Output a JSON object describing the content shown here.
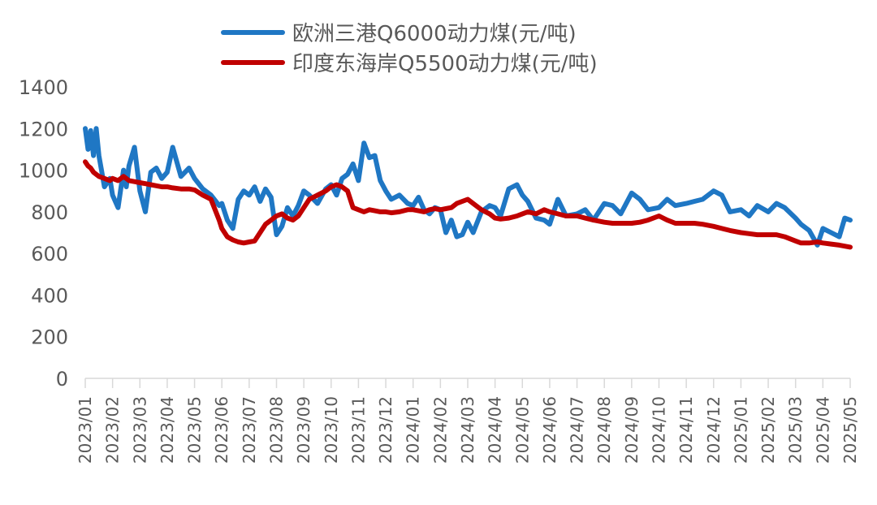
{
  "chart_data": {
    "type": "line",
    "title": "",
    "xlabel": "",
    "ylabel": "",
    "ylim": [
      0,
      1400
    ],
    "yticks": [
      0,
      200,
      400,
      600,
      800,
      1000,
      1200,
      1400
    ],
    "grid": false,
    "legend_position": "top",
    "categories": [
      "2023/01",
      "2023/02",
      "2023/03",
      "2023/04",
      "2023/05",
      "2023/06",
      "2023/07",
      "2023/08",
      "2023/09",
      "2023/10",
      "2023/11",
      "2023/12",
      "2024/01",
      "2024/02",
      "2024/03",
      "2024/04",
      "2024/05",
      "2024/06",
      "2024/07",
      "2024/08",
      "2024/09",
      "2024/10",
      "2024/11",
      "2024/12",
      "2025/01",
      "2025/02",
      "2025/03",
      "2025/04",
      "2025/05"
    ],
    "x": [
      0,
      0.1,
      0.2,
      0.3,
      0.4,
      0.5,
      0.7,
      0.9,
      1.0,
      1.2,
      1.4,
      1.5,
      1.6,
      1.8,
      2.0,
      2.2,
      2.4,
      2.6,
      2.8,
      3.0,
      3.2,
      3.5,
      3.8,
      4.0,
      4.3,
      4.6,
      4.9,
      5.0,
      5.2,
      5.4,
      5.6,
      5.8,
      6.0,
      6.2,
      6.4,
      6.6,
      6.8,
      7.0,
      7.2,
      7.4,
      7.6,
      7.8,
      8.0,
      8.2,
      8.5,
      8.8,
      9.0,
      9.2,
      9.4,
      9.6,
      9.8,
      10.0,
      10.2,
      10.4,
      10.6,
      10.8,
      11.0,
      11.2,
      11.5,
      11.8,
      12.0,
      12.2,
      12.4,
      12.6,
      12.8,
      13.0,
      13.2,
      13.4,
      13.6,
      13.8,
      14.0,
      14.2,
      14.5,
      14.8,
      15.0,
      15.2,
      15.5,
      15.8,
      16.0,
      16.2,
      16.5,
      16.8,
      17.0,
      17.3,
      17.6,
      18.0,
      18.3,
      18.6,
      19.0,
      19.3,
      19.6,
      20.0,
      20.3,
      20.6,
      21.0,
      21.3,
      21.6,
      22.0,
      22.3,
      22.6,
      23.0,
      23.3,
      23.6,
      24.0,
      24.3,
      24.6,
      25.0,
      25.3,
      25.6,
      26.0,
      26.2,
      26.5,
      26.8,
      27.0,
      27.3,
      27.6,
      27.8,
      28.0
    ],
    "series": [
      {
        "name": "欧洲三港Q6000动力煤(元/吨)",
        "color": "#1F77C4",
        "values": [
          1200,
          1100,
          1190,
          1070,
          1200,
          1070,
          920,
          960,
          880,
          820,
          1000,
          920,
          1020,
          1110,
          900,
          800,
          990,
          1010,
          960,
          990,
          1110,
          970,
          1010,
          960,
          910,
          880,
          830,
          840,
          760,
          720,
          860,
          900,
          880,
          920,
          850,
          910,
          870,
          690,
          730,
          820,
          780,
          830,
          900,
          880,
          840,
          910,
          930,
          880,
          960,
          980,
          1030,
          950,
          1130,
          1060,
          1070,
          950,
          900,
          860,
          880,
          840,
          830,
          870,
          810,
          790,
          820,
          810,
          700,
          760,
          680,
          690,
          750,
          700,
          800,
          830,
          820,
          780,
          910,
          930,
          880,
          850,
          770,
          760,
          740,
          860,
          780,
          790,
          810,
          760,
          840,
          830,
          790,
          890,
          860,
          810,
          820,
          860,
          830,
          840,
          850,
          860,
          900,
          880,
          800,
          810,
          780,
          830,
          800,
          840,
          820,
          770,
          740,
          710,
          640,
          720,
          700,
          680,
          770,
          760,
          700,
          720
        ]
      },
      {
        "name": "印度东海岸Q5500动力煤(元/吨)",
        "color": "#C00000",
        "values": [
          1040,
          1020,
          1010,
          990,
          980,
          970,
          960,
          950,
          960,
          950,
          970,
          960,
          950,
          945,
          940,
          935,
          930,
          925,
          920,
          920,
          915,
          910,
          910,
          905,
          880,
          860,
          760,
          720,
          680,
          665,
          655,
          650,
          655,
          660,
          700,
          740,
          760,
          780,
          790,
          770,
          760,
          780,
          820,
          860,
          880,
          900,
          920,
          930,
          920,
          900,
          820,
          810,
          800,
          810,
          805,
          800,
          800,
          795,
          800,
          810,
          810,
          805,
          800,
          810,
          815,
          810,
          815,
          820,
          840,
          850,
          860,
          840,
          810,
          790,
          770,
          765,
          770,
          780,
          790,
          800,
          790,
          810,
          800,
          790,
          780,
          780,
          770,
          760,
          750,
          745,
          745,
          745,
          750,
          760,
          780,
          760,
          745,
          745,
          745,
          740,
          730,
          720,
          710,
          700,
          695,
          690,
          690,
          690,
          680,
          660,
          650,
          650,
          655,
          650,
          645,
          640,
          635,
          630
        ]
      }
    ]
  },
  "legend": {
    "items": [
      {
        "label": "欧洲三港Q6000动力煤(元/吨)",
        "color": "#1F77C4"
      },
      {
        "label": "印度东海岸Q5500动力煤(元/吨)",
        "color": "#C00000"
      }
    ]
  },
  "axes": {
    "y_labels": [
      "0",
      "200",
      "400",
      "600",
      "800",
      "1000",
      "1200",
      "1400"
    ],
    "x_labels": [
      "2023/01",
      "2023/02",
      "2023/03",
      "2023/04",
      "2023/05",
      "2023/06",
      "2023/07",
      "2023/08",
      "2023/09",
      "2023/10",
      "2023/11",
      "2023/12",
      "2024/01",
      "2024/02",
      "2024/03",
      "2024/04",
      "2024/05",
      "2024/06",
      "2024/07",
      "2024/08",
      "2024/09",
      "2024/10",
      "2024/11",
      "2024/12",
      "2025/01",
      "2025/02",
      "2025/03",
      "2025/04",
      "2025/05"
    ]
  }
}
